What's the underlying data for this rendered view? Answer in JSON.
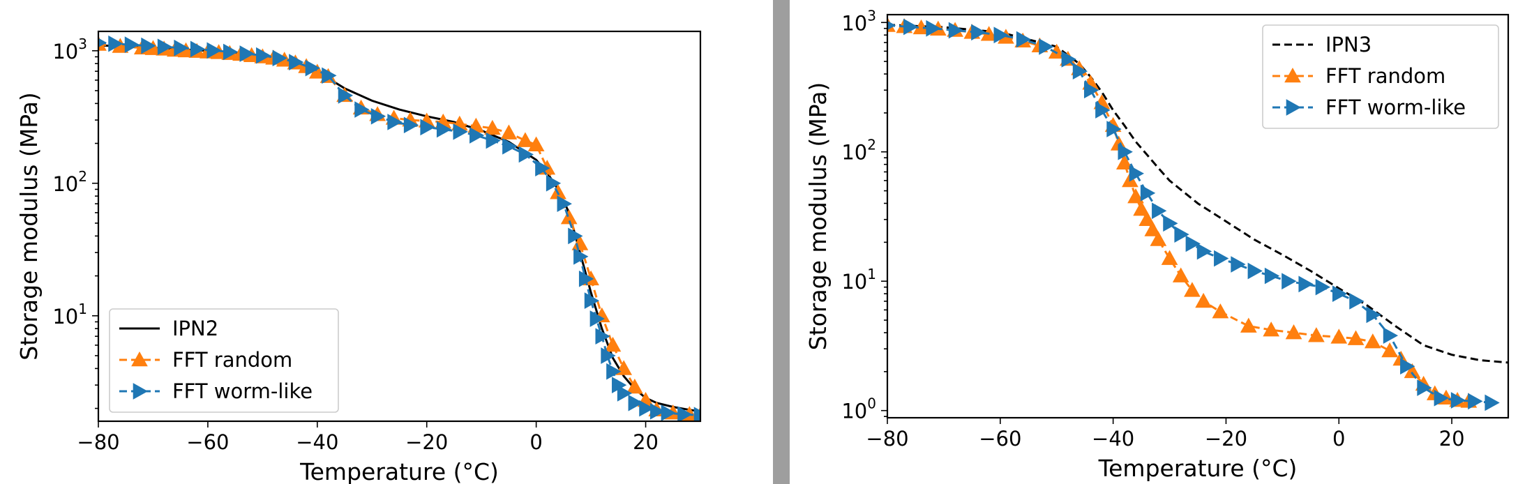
{
  "chart_data": [
    {
      "type": "line",
      "xlabel": "Temperature (°C)",
      "ylabel": "Storage modulus (MPa)",
      "xlim": [
        -80,
        30
      ],
      "ylim": [
        1.6,
        1400
      ],
      "yscale": "log",
      "xticks": [
        -80,
        -60,
        -40,
        -20,
        0,
        20
      ],
      "xtick_labels": [
        "−80",
        "−60",
        "−40",
        "−20",
        "0",
        "20"
      ],
      "yticks": [
        10,
        100,
        1000
      ],
      "ytick_labels": [
        "10",
        "10",
        "10"
      ],
      "ytick_exps": [
        "1",
        "2",
        "3"
      ],
      "legend_position": "lower-left",
      "series": [
        {
          "name": "IPN2",
          "color": "#000000",
          "style": "solid",
          "marker": "none",
          "x": [
            -80,
            -70,
            -60,
            -50,
            -45,
            -40,
            -38,
            -35,
            -30,
            -25,
            -20,
            -15,
            -10,
            -5,
            0,
            2,
            4,
            6,
            8,
            10,
            12,
            14,
            16,
            18,
            20,
            22,
            25,
            28,
            30
          ],
          "y": [
            1100,
            1050,
            1000,
            920,
            850,
            720,
            620,
            520,
            420,
            360,
            320,
            290,
            250,
            205,
            150,
            120,
            90,
            60,
            30,
            15,
            8,
            4.8,
            3.5,
            2.8,
            2.4,
            2.2,
            2.05,
            1.95,
            1.9
          ]
        },
        {
          "name": "FFT random",
          "color": "#ff7f0e",
          "style": "dashed",
          "marker": "triangle-up",
          "x": [
            -80,
            -76,
            -72,
            -70,
            -68,
            -66,
            -64,
            -62,
            -60,
            -58,
            -56,
            -54,
            -52,
            -50,
            -48,
            -46,
            -44,
            -42,
            -40,
            -38,
            -35,
            -32,
            -29,
            -26,
            -23,
            -20,
            -17,
            -14,
            -11,
            -8,
            -5,
            -2,
            0,
            2,
            4,
            6,
            8,
            10,
            12,
            14,
            16,
            18,
            20,
            22,
            25,
            28,
            30
          ],
          "y": [
            1120,
            1080,
            1050,
            1040,
            1030,
            1010,
            1000,
            990,
            980,
            970,
            955,
            940,
            920,
            900,
            880,
            850,
            810,
            760,
            690,
            640,
            460,
            370,
            330,
            310,
            300,
            295,
            290,
            280,
            270,
            260,
            240,
            210,
            195,
            130,
            85,
            55,
            35,
            19,
            10,
            6,
            4,
            2.9,
            2.3,
            1.95,
            1.85,
            1.8,
            1.78
          ]
        },
        {
          "name": "FFT worm-like",
          "color": "#1f77b4",
          "style": "dashed",
          "marker": "triangle-right",
          "x": [
            -80,
            -77,
            -74,
            -71,
            -68,
            -65,
            -62,
            -59,
            -56,
            -53,
            -50,
            -47,
            -44,
            -41,
            -38,
            -35,
            -32,
            -29,
            -26,
            -23,
            -20,
            -17,
            -14,
            -11,
            -8,
            -5,
            -2,
            1,
            3,
            5,
            7,
            8,
            9,
            10,
            11,
            12,
            13,
            14,
            15,
            16,
            18,
            20,
            22,
            24,
            27,
            30
          ],
          "y": [
            1150,
            1130,
            1110,
            1090,
            1070,
            1050,
            1030,
            1005,
            980,
            950,
            920,
            880,
            820,
            740,
            650,
            460,
            360,
            320,
            290,
            275,
            265,
            255,
            245,
            230,
            210,
            190,
            165,
            130,
            100,
            70,
            40,
            28,
            19,
            13,
            9.5,
            7,
            5,
            3.8,
            3,
            2.6,
            2.2,
            2.0,
            1.9,
            1.85,
            1.8,
            1.78
          ]
        }
      ]
    },
    {
      "type": "line",
      "xlabel": "Temperature (°C)",
      "ylabel": "Storage modulus (MPa)",
      "xlim": [
        -80,
        30
      ],
      "ylim": [
        0.88,
        1150
      ],
      "yscale": "log",
      "xticks": [
        -80,
        -60,
        -40,
        -20,
        0,
        20
      ],
      "xtick_labels": [
        "−80",
        "−60",
        "−40",
        "−20",
        "0",
        "20"
      ],
      "yticks": [
        1,
        10,
        100,
        1000
      ],
      "ytick_labels": [
        "10",
        "10",
        "10",
        "10"
      ],
      "ytick_exps": [
        "0",
        "1",
        "2",
        "3"
      ],
      "legend_position": "upper-right",
      "series": [
        {
          "name": "IPN3",
          "color": "#000000",
          "style": "dashed",
          "marker": "none",
          "x": [
            -80,
            -70,
            -60,
            -50,
            -46,
            -44,
            -42,
            -40,
            -38,
            -36,
            -34,
            -32,
            -30,
            -25,
            -20,
            -15,
            -10,
            -5,
            0,
            5,
            10,
            15,
            20,
            25,
            30
          ],
          "y": [
            960,
            920,
            840,
            650,
            480,
            380,
            290,
            210,
            160,
            120,
            95,
            75,
            60,
            40,
            29,
            21,
            16,
            12,
            8.8,
            6.5,
            4.5,
            3.2,
            2.7,
            2.45,
            2.35
          ]
        },
        {
          "name": "FFT random",
          "color": "#ff7f0e",
          "style": "dashed",
          "marker": "triangle-up",
          "x": [
            -80,
            -77,
            -74,
            -71,
            -68,
            -65,
            -62,
            -59,
            -56,
            -53,
            -50,
            -48,
            -46,
            -44,
            -42,
            -40,
            -39,
            -38,
            -37,
            -36,
            -35,
            -34,
            -33,
            -32,
            -30,
            -28,
            -26,
            -24,
            -21,
            -16,
            -12,
            -8,
            -4,
            0,
            3,
            6,
            9,
            11,
            13,
            15,
            17,
            19,
            21,
            23
          ],
          "y": [
            950,
            930,
            910,
            890,
            870,
            840,
            810,
            770,
            720,
            660,
            590,
            520,
            440,
            340,
            240,
            160,
            115,
            82,
            60,
            45,
            36,
            30,
            25,
            21,
            15,
            11,
            8.5,
            7,
            5.8,
            4.5,
            4.2,
            4.0,
            3.8,
            3.7,
            3.6,
            3.4,
            2.9,
            2.5,
            2.0,
            1.6,
            1.35,
            1.25,
            1.2,
            1.18
          ]
        },
        {
          "name": "FFT worm-like",
          "color": "#1f77b4",
          "style": "dashed",
          "marker": "triangle-right",
          "x": [
            -80,
            -76,
            -72,
            -68,
            -64,
            -60,
            -56,
            -52,
            -48,
            -46,
            -44,
            -42,
            -40,
            -38,
            -36,
            -34,
            -32,
            -30,
            -28,
            -26,
            -24,
            -21,
            -18,
            -15,
            -12,
            -9,
            -6,
            -3,
            0,
            3,
            6,
            9,
            12,
            15,
            18,
            21,
            24,
            27
          ],
          "y": [
            950,
            925,
            900,
            870,
            840,
            800,
            740,
            650,
            520,
            420,
            300,
            210,
            150,
            100,
            68,
            48,
            35,
            28,
            23,
            19.5,
            17,
            15,
            13.5,
            12,
            11,
            10,
            9.5,
            9,
            8,
            7,
            5.5,
            3.8,
            2.2,
            1.5,
            1.25,
            1.2,
            1.18,
            1.15
          ]
        }
      ]
    }
  ]
}
